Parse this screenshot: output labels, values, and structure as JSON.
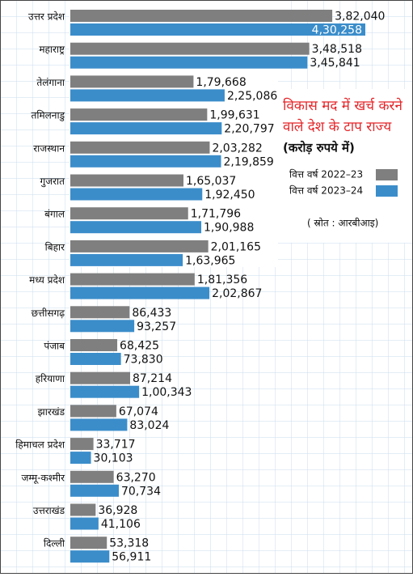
{
  "chart_data": {
    "type": "hbar",
    "title": [
      "विकास मद में खर्च करने",
      "वाले देश के टाप राज्य"
    ],
    "subtitle": "(करोड़ रुपये में)",
    "source": "( स्रोत : आरबीआइ)",
    "categories": [
      "उत्तर प्रदेश",
      "महाराष्ट्र",
      "तेलंगाना",
      "तमिलनाडु",
      "राजस्थान",
      "गुजरात",
      "बंगाल",
      "बिहार",
      "मध्य प्रदेश",
      "छत्तीसगढ़",
      "पंजाब",
      "हरियाणा",
      "झारखंड",
      "हिमाचल प्रदेश",
      "जम्मू-कश्मीर",
      "उत्तराखंड",
      "दिल्ली"
    ],
    "series": [
      {
        "name": "वित्त वर्ष 2022–23",
        "color": "#7f7f7f",
        "values": [
          382040,
          348518,
          179668,
          199631,
          203282,
          165037,
          171796,
          201165,
          181356,
          86433,
          68425,
          87214,
          67074,
          33717,
          63270,
          36928,
          53318
        ],
        "value_labels": [
          "3,82,040",
          "3,48,518",
          "1,79,668",
          "1,99,631",
          "2,03,282",
          "1,65,037",
          "1,71,796",
          "2,01,165",
          "1,81,356",
          "86,433",
          "68,425",
          "87,214",
          "67,074",
          "33,717",
          "63,270",
          "36,928",
          "53,318"
        ]
      },
      {
        "name": "वित्त वर्ष 2023–24",
        "color": "#3b8dca",
        "values": [
          430258,
          345841,
          225086,
          220797,
          219859,
          192450,
          190988,
          163965,
          202867,
          93257,
          73830,
          100343,
          83024,
          30103,
          70734,
          41106,
          56911
        ],
        "value_labels": [
          "4,30,258",
          "3,45,841",
          "2,25,086",
          "2,20,797",
          "2,19,859",
          "1,92,450",
          "1,90,988",
          "1,63,965",
          "2,02,867",
          "93,257",
          "73,830",
          "1,00,343",
          "83,024",
          "30,103",
          "70,734",
          "41,106",
          "56,911"
        ]
      }
    ]
  }
}
